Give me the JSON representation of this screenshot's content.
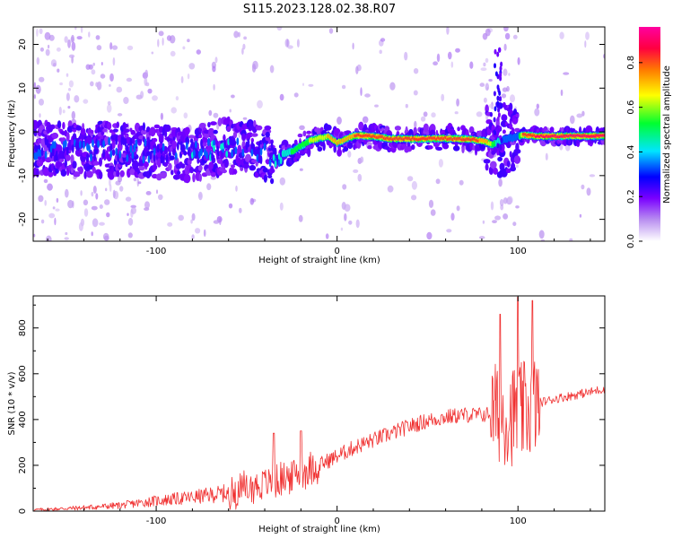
{
  "figure": {
    "title": "S115.2023.128.02.38.R07"
  },
  "chart_data": [
    {
      "type": "heatmap",
      "xlabel": "Height of straight line (km)",
      "ylabel": "Frequency (Hz)",
      "xlim": [
        -168,
        148
      ],
      "ylim": [
        -25,
        24
      ],
      "xticks": [
        -100,
        0,
        100
      ],
      "yticks": [
        -20,
        -10,
        0,
        10,
        20
      ],
      "colorbar": {
        "label": "Normalized spectral amplitude",
        "range": [
          0,
          0.96
        ],
        "ticks": [
          0.0,
          0.2,
          0.4,
          0.6,
          0.8
        ],
        "colors": [
          "#ffffff",
          "#b98ff0",
          "#7a00ff",
          "#0000ff",
          "#00e5ff",
          "#00ff30",
          "#ffff00",
          "#ff7a00",
          "#ff0040",
          "#ff00a0"
        ]
      },
      "ridge": {
        "note": "peak frequency (Hz) vs height (km)",
        "x": [
          -168,
          -140,
          -120,
          -100,
          -80,
          -60,
          -45,
          -35,
          -25,
          -15,
          -5,
          0,
          10,
          20,
          30,
          45,
          60,
          75,
          82,
          86,
          90,
          100,
          103,
          110,
          148
        ],
        "y": [
          -4,
          -4,
          -4,
          -4.5,
          -5,
          -3,
          -4,
          -5.5,
          -4.5,
          -2,
          -1,
          -2.5,
          -0.8,
          -1,
          -1.6,
          -1.6,
          -1.5,
          -1.7,
          -2.2,
          -3,
          -2,
          -1,
          -0.7,
          -1,
          -0.9
        ],
        "max_amplitude": [
          0.4,
          0.45,
          0.4,
          0.4,
          0.45,
          0.45,
          0.4,
          0.45,
          0.55,
          0.65,
          0.75,
          0.8,
          0.85,
          0.85,
          0.9,
          0.9,
          0.9,
          0.9,
          0.8,
          0.6,
          0.45,
          0.4,
          0.9,
          0.95,
          0.95
        ]
      }
    },
    {
      "type": "line",
      "xlabel": "Height of straight line (km)",
      "ylabel": "SNR (10 * v/v)",
      "xlim": [
        -168,
        148
      ],
      "ylim": [
        0,
        940
      ],
      "xticks": [
        -100,
        0,
        100
      ],
      "yticks": [
        0,
        200,
        400,
        600,
        800
      ],
      "color": "#f03030",
      "trend": {
        "x": [
          -168,
          -140,
          -120,
          -100,
          -80,
          -60,
          -40,
          -30,
          -20,
          -10,
          0,
          10,
          20,
          30,
          40,
          50,
          60,
          70,
          80,
          85,
          90,
          95,
          100,
          105,
          110,
          115,
          120,
          130,
          140,
          148
        ],
        "y": [
          5,
          15,
          25,
          45,
          60,
          80,
          120,
          140,
          170,
          200,
          240,
          280,
          310,
          340,
          370,
          395,
          410,
          420,
          420,
          425,
          430,
          420,
          420,
          440,
          470,
          480,
          490,
          505,
          520,
          535
        ]
      },
      "peaks": [
        {
          "x": -35,
          "y": 340
        },
        {
          "x": -20,
          "y": 350
        },
        {
          "x": 90,
          "y": 860
        },
        {
          "x": 100,
          "y": 935
        },
        {
          "x": 108,
          "y": 920
        }
      ]
    }
  ]
}
